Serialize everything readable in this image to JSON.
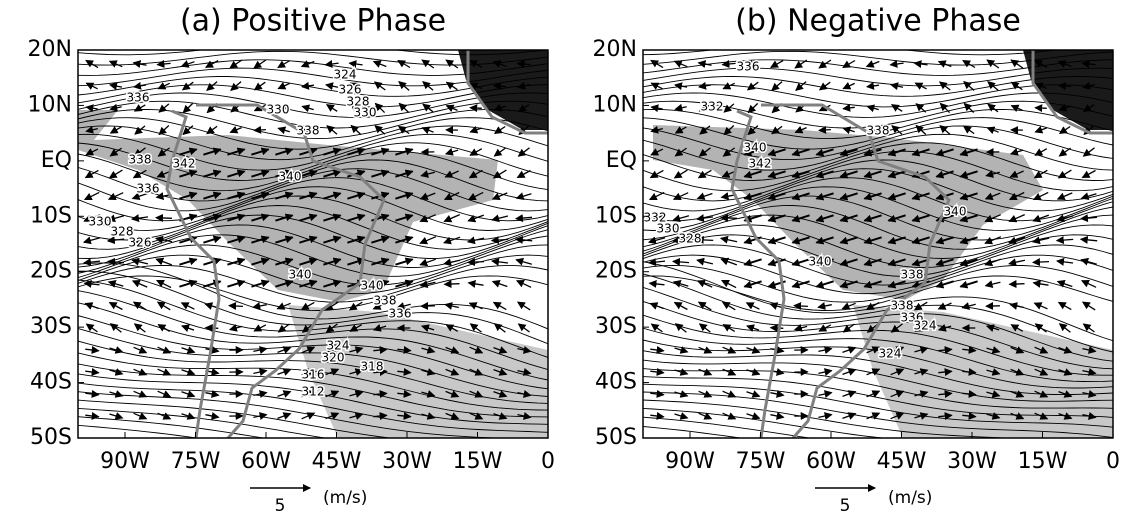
{
  "panels": [
    {
      "title": "(a) Positive Phase",
      "xlim": [
        -100,
        0
      ],
      "ylim": [
        -50,
        20
      ],
      "xticks": [
        {
          "value": -90,
          "label": "90W"
        },
        {
          "value": -75,
          "label": "75W"
        },
        {
          "value": -60,
          "label": "60W"
        },
        {
          "value": -45,
          "label": "45W"
        },
        {
          "value": -30,
          "label": "30W"
        },
        {
          "value": -15,
          "label": "15W"
        },
        0
      ],
      "yticks": [
        {
          "value": 20,
          "label": "20N"
        },
        {
          "value": 10,
          "label": "10N"
        },
        {
          "value": 0,
          "label": "EQ"
        },
        {
          "value": -10,
          "label": "10S"
        },
        {
          "value": -20,
          "label": "20S"
        },
        {
          "value": -30,
          "label": "30S"
        },
        {
          "value": -40,
          "label": "40S"
        },
        {
          "value": -50,
          "label": "50S"
        }
      ],
      "contour_labels": [
        324,
        326,
        328,
        330,
        336,
        330,
        338,
        338,
        342,
        340,
        336,
        330,
        328,
        326,
        340,
        340,
        338,
        336,
        324,
        320,
        318,
        316,
        312
      ],
      "reference_vector": {
        "value": 5,
        "unit": "(m/s)"
      }
    },
    {
      "title": "(b) Negative Phase",
      "xlim": [
        -100,
        0
      ],
      "ylim": [
        -50,
        20
      ],
      "xticks": [
        {
          "value": -90,
          "label": "90W"
        },
        {
          "value": -75,
          "label": "75W"
        },
        {
          "value": -60,
          "label": "60W"
        },
        {
          "value": -45,
          "label": "45W"
        },
        {
          "value": -30,
          "label": "30W"
        },
        {
          "value": -15,
          "label": "15W"
        },
        0
      ],
      "yticks": [
        {
          "value": 20,
          "label": "20N"
        },
        {
          "value": 10,
          "label": "10N"
        },
        {
          "value": 0,
          "label": "EQ"
        },
        {
          "value": -10,
          "label": "10S"
        },
        {
          "value": -20,
          "label": "20S"
        },
        {
          "value": -30,
          "label": "30S"
        },
        {
          "value": -40,
          "label": "40S"
        },
        {
          "value": -50,
          "label": "50S"
        }
      ],
      "contour_labels": [
        336,
        332,
        338,
        340,
        342,
        340,
        332,
        330,
        328,
        340,
        338,
        338,
        336,
        324,
        324
      ],
      "reference_vector": {
        "value": 5,
        "unit": "(m/s)"
      }
    }
  ]
}
